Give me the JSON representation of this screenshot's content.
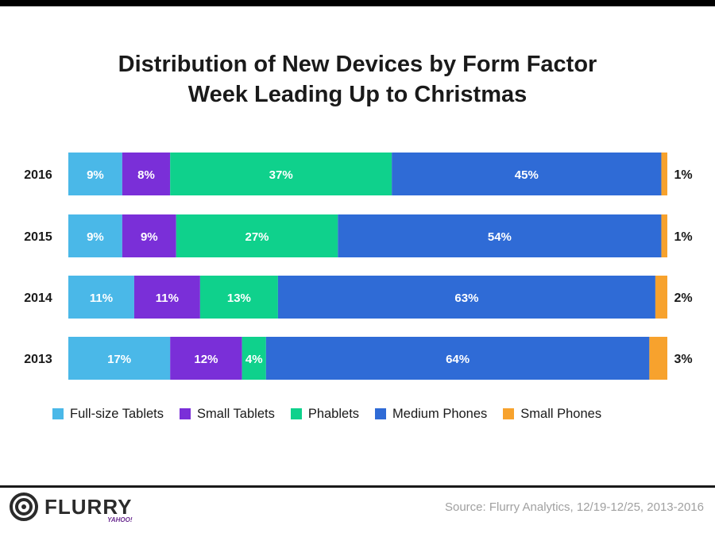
{
  "chart_data": {
    "type": "bar",
    "orientation": "horizontal",
    "stacked": true,
    "title": "Distribution of New Devices by Form Factor",
    "subtitle": "Week Leading Up to Christmas",
    "categories": [
      "2016",
      "2015",
      "2014",
      "2013"
    ],
    "series": [
      {
        "name": "Full-size Tablets",
        "color": "#4ab8e8",
        "values": [
          9,
          9,
          11,
          17
        ]
      },
      {
        "name": "Small Tablets",
        "color": "#7a2fd8",
        "values": [
          8,
          9,
          11,
          12
        ]
      },
      {
        "name": "Phablets",
        "color": "#0fd18c",
        "values": [
          37,
          27,
          13,
          4
        ]
      },
      {
        "name": "Medium Phones",
        "color": "#2f6bd6",
        "values": [
          45,
          54,
          63,
          64
        ]
      },
      {
        "name": "Small Phones",
        "color": "#f7a22d",
        "values": [
          1,
          1,
          2,
          3
        ]
      }
    ],
    "value_suffix": "%",
    "xlim": [
      0,
      100
    ],
    "grid": false,
    "legend_position": "bottom"
  },
  "footer": {
    "brand": "FLURRY",
    "brand_sub": "YAHOO!",
    "source": "Source: Flurry Analytics, 12/19-12/25, 2013-2016"
  }
}
